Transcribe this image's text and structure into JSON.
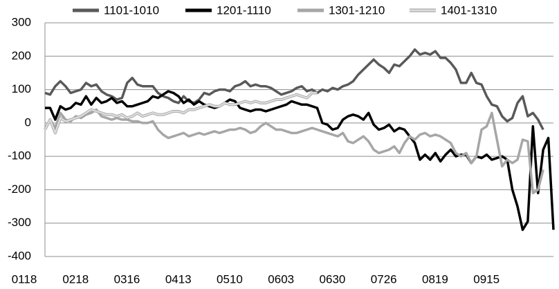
{
  "chart_data": {
    "type": "line",
    "categories": [
      "0118",
      null,
      null,
      null,
      null,
      null,
      null,
      null,
      null,
      null,
      "0218",
      null,
      null,
      null,
      null,
      null,
      null,
      null,
      null,
      null,
      "0316",
      null,
      null,
      null,
      null,
      null,
      null,
      null,
      null,
      null,
      "0413",
      null,
      null,
      null,
      null,
      null,
      null,
      null,
      null,
      null,
      "0510",
      null,
      null,
      null,
      null,
      null,
      null,
      null,
      null,
      null,
      "0603",
      null,
      null,
      null,
      null,
      null,
      null,
      null,
      null,
      null,
      "0630",
      null,
      null,
      null,
      null,
      null,
      null,
      null,
      null,
      null,
      "0726",
      null,
      null,
      null,
      null,
      null,
      null,
      null,
      null,
      null,
      "0819",
      null,
      null,
      null,
      null,
      null,
      null,
      null,
      null,
      null,
      "0915",
      null,
      null,
      null,
      null,
      null,
      null,
      null,
      null,
      null
    ],
    "series": [
      {
        "name": "1101-1010",
        "color": "#595959",
        "values": [
          90,
          85,
          110,
          125,
          110,
          90,
          95,
          100,
          120,
          110,
          115,
          95,
          85,
          80,
          70,
          75,
          120,
          135,
          115,
          110,
          110,
          110,
          90,
          80,
          75,
          65,
          60,
          80,
          65,
          60,
          70,
          90,
          85,
          95,
          100,
          100,
          95,
          110,
          115,
          125,
          110,
          115,
          110,
          110,
          105,
          95,
          85,
          90,
          95,
          105,
          110,
          95,
          100,
          90,
          100,
          95,
          105,
          100,
          110,
          115,
          125,
          145,
          160,
          175,
          190,
          175,
          165,
          150,
          175,
          170,
          185,
          200,
          220,
          205,
          210,
          205,
          215,
          195,
          195,
          180,
          160,
          120,
          120,
          150,
          120,
          115,
          80,
          55,
          50,
          20,
          5,
          15,
          60,
          80,
          20,
          30,
          10,
          -20,
          null,
          null
        ]
      },
      {
        "name": "1201-1110",
        "color": "#000000",
        "values": [
          45,
          45,
          10,
          50,
          40,
          45,
          60,
          55,
          80,
          55,
          75,
          60,
          65,
          75,
          60,
          65,
          50,
          50,
          55,
          60,
          65,
          80,
          75,
          85,
          95,
          90,
          80,
          60,
          70,
          55,
          65,
          55,
          50,
          45,
          50,
          60,
          70,
          65,
          45,
          40,
          35,
          40,
          40,
          35,
          40,
          45,
          50,
          55,
          65,
          60,
          55,
          55,
          50,
          45,
          0,
          -5,
          -20,
          -15,
          10,
          20,
          25,
          20,
          10,
          30,
          -5,
          -20,
          -15,
          -5,
          -25,
          -15,
          -20,
          -40,
          -60,
          -110,
          -95,
          -110,
          -90,
          -115,
          -95,
          -80,
          -100,
          -95,
          -95,
          -120,
          -100,
          -105,
          -95,
          -110,
          -105,
          -100,
          -110,
          -200,
          -250,
          -320,
          -295,
          -10,
          -210,
          -80,
          -45,
          -320
        ]
      },
      {
        "name": "1301-1210",
        "color": "#a6a6a6",
        "values": [
          -20,
          10,
          -15,
          30,
          10,
          5,
          20,
          15,
          25,
          30,
          40,
          20,
          15,
          10,
          15,
          10,
          10,
          5,
          5,
          0,
          0,
          5,
          -20,
          -35,
          -45,
          -40,
          -35,
          -30,
          -40,
          -35,
          -30,
          -35,
          -30,
          -25,
          -30,
          -25,
          -20,
          -20,
          -15,
          -20,
          -30,
          -25,
          -10,
          0,
          -10,
          -20,
          -20,
          -25,
          -30,
          -30,
          -25,
          -20,
          -15,
          -20,
          -25,
          -30,
          -35,
          -40,
          -30,
          -55,
          -60,
          -50,
          -40,
          -55,
          -80,
          -90,
          -85,
          -80,
          -70,
          -90,
          -60,
          -40,
          -50,
          -35,
          -30,
          -40,
          -35,
          -40,
          -50,
          -60,
          -90,
          -100,
          -90,
          -120,
          -100,
          -20,
          -10,
          30,
          -50,
          -130,
          -110,
          -120,
          -110,
          -50,
          -55,
          -210,
          -200,
          -140,
          null,
          null
        ]
      },
      {
        "name": "1401-1310",
        "color": "#dcdcdc",
        "values": [
          -20,
          10,
          -30,
          15,
          5,
          10,
          15,
          20,
          30,
          40,
          35,
          30,
          25,
          25,
          20,
          25,
          15,
          20,
          30,
          20,
          25,
          30,
          25,
          25,
          30,
          35,
          35,
          30,
          40,
          40,
          45,
          50,
          55,
          50,
          50,
          60,
          55,
          55,
          60,
          65,
          60,
          65,
          60,
          60,
          65,
          70,
          70,
          75,
          80,
          85,
          80,
          75,
          90,
          90,
          null,
          null,
          null,
          null,
          null,
          null,
          null,
          null,
          null,
          null,
          null,
          null,
          null,
          null,
          null,
          null,
          null,
          null,
          null,
          null,
          null,
          null,
          null,
          null,
          null,
          null,
          null,
          null,
          null,
          null,
          null,
          null,
          null,
          null,
          null,
          null,
          null,
          null,
          null,
          null,
          null,
          null,
          null,
          null,
          null,
          null
        ]
      }
    ],
    "ylim": [
      -400,
      300
    ],
    "yticks": [
      -400,
      -300,
      -200,
      -100,
      0,
      100,
      200,
      300
    ],
    "grid": true,
    "legend": "top"
  }
}
